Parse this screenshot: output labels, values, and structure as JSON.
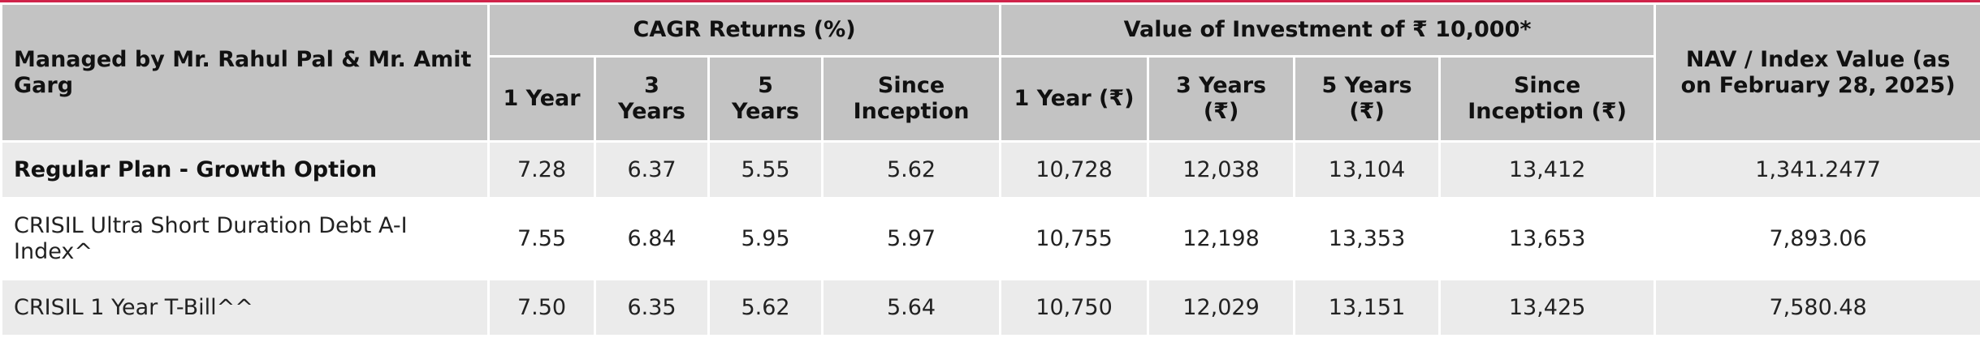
{
  "table": {
    "header": {
      "managed_by": "Managed by Mr. Rahul Pal & Mr. Amit Garg",
      "cagr_group": "CAGR Returns (%)",
      "value_group": "Value of Investment of ₹ 10,000*",
      "nav_header": "NAV / Index Value (as on February 28, 2025)",
      "cagr_cols": [
        "1 Year",
        "3 Years",
        "5 Years",
        "Since Inception"
      ],
      "value_cols": [
        "1 Year (₹)",
        "3 Years (₹)",
        "5 Years (₹)",
        "Since Inception (₹)"
      ]
    },
    "rows": [
      {
        "label": "Regular Plan - Growth Option",
        "cagr": [
          "7.28",
          "6.37",
          "5.55",
          "5.62"
        ],
        "value": [
          "10,728",
          "12,038",
          "13,104",
          "13,412"
        ],
        "nav": "1,341.2477"
      },
      {
        "label": "CRISIL Ultra Short Duration Debt A-I Index^",
        "cagr": [
          "7.55",
          "6.84",
          "5.95",
          "5.97"
        ],
        "value": [
          "10,755",
          "12,198",
          "13,353",
          "13,653"
        ],
        "nav": "7,893.06"
      },
      {
        "label": "CRISIL 1 Year T-Bill^^",
        "cagr": [
          "7.50",
          "6.35",
          "5.62",
          "5.64"
        ],
        "value": [
          "10,750",
          "12,029",
          "13,151",
          "13,425"
        ],
        "nav": "7,580.48"
      }
    ]
  },
  "colors": {
    "accent_rule": "#d0234a",
    "header_bg": "#c3c3c3",
    "shaded_row_bg": "#ebebeb"
  }
}
